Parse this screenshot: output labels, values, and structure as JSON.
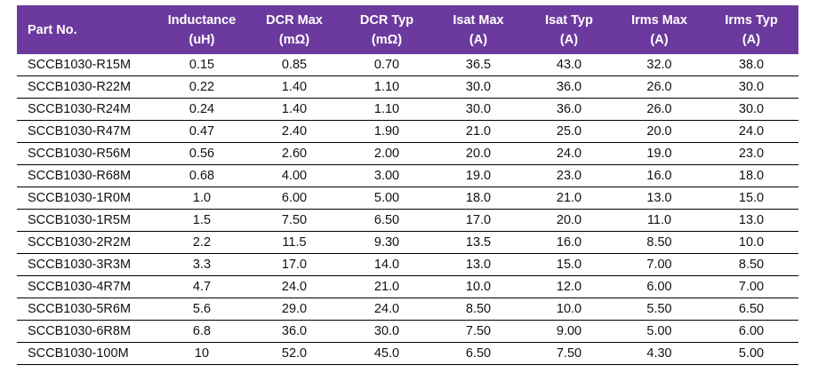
{
  "table": {
    "headers": [
      {
        "line1": "Part No.",
        "line2": ""
      },
      {
        "line1": "Inductance",
        "line2": "(uH)"
      },
      {
        "line1": "DCR Max",
        "line2": "(mΩ)"
      },
      {
        "line1": "DCR Typ",
        "line2": "(mΩ)"
      },
      {
        "line1": "Isat Max",
        "line2": "(A)"
      },
      {
        "line1": "Isat Typ",
        "line2": "(A)"
      },
      {
        "line1": "Irms Max",
        "line2": "(A)"
      },
      {
        "line1": "Irms Typ",
        "line2": "(A)"
      }
    ],
    "rows": [
      [
        "SCCB1030-R15M",
        "0.15",
        "0.85",
        "0.70",
        "36.5",
        "43.0",
        "32.0",
        "38.0"
      ],
      [
        "SCCB1030-R22M",
        "0.22",
        "1.40",
        "1.10",
        "30.0",
        "36.0",
        "26.0",
        "30.0"
      ],
      [
        "SCCB1030-R24M",
        "0.24",
        "1.40",
        "1.10",
        "30.0",
        "36.0",
        "26.0",
        "30.0"
      ],
      [
        "SCCB1030-R47M",
        "0.47",
        "2.40",
        "1.90",
        "21.0",
        "25.0",
        "20.0",
        "24.0"
      ],
      [
        "SCCB1030-R56M",
        "0.56",
        "2.60",
        "2.00",
        "20.0",
        "24.0",
        "19.0",
        "23.0"
      ],
      [
        "SCCB1030-R68M",
        "0.68",
        "4.00",
        "3.00",
        "19.0",
        "23.0",
        "16.0",
        "18.0"
      ],
      [
        "SCCB1030-1R0M",
        "1.0",
        "6.00",
        "5.00",
        "18.0",
        "21.0",
        "13.0",
        "15.0"
      ],
      [
        "SCCB1030-1R5M",
        "1.5",
        "7.50",
        "6.50",
        "17.0",
        "20.0",
        "11.0",
        "13.0"
      ],
      [
        "SCCB1030-2R2M",
        "2.2",
        "11.5",
        "9.30",
        "13.5",
        "16.0",
        "8.50",
        "10.0"
      ],
      [
        "SCCB1030-3R3M",
        "3.3",
        "17.0",
        "14.0",
        "13.0",
        "15.0",
        "7.00",
        "8.50"
      ],
      [
        "SCCB1030-4R7M",
        "4.7",
        "24.0",
        "21.0",
        "10.0",
        "12.0",
        "6.00",
        "7.00"
      ],
      [
        "SCCB1030-5R6M",
        "5.6",
        "29.0",
        "24.0",
        "8.50",
        "10.0",
        "5.50",
        "6.50"
      ],
      [
        "SCCB1030-6R8M",
        "6.8",
        "36.0",
        "30.0",
        "7.50",
        "9.00",
        "5.00",
        "6.00"
      ],
      [
        "SCCB1030-100M",
        "10",
        "52.0",
        "45.0",
        "6.50",
        "7.50",
        "4.30",
        "5.00"
      ]
    ]
  },
  "colors": {
    "header_bg": "#6c3a9e",
    "header_text": "#ffffff",
    "row_border": "#000000"
  }
}
